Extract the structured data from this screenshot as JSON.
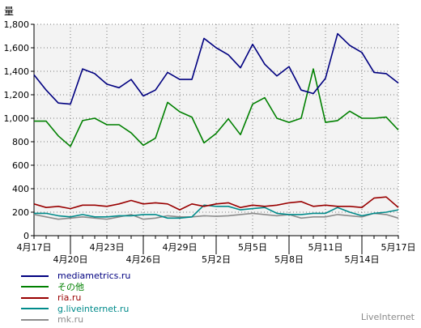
{
  "chart_data": {
    "type": "line",
    "ylabel": "量",
    "ylim": [
      0,
      1800
    ],
    "yticks": [
      "0",
      "200",
      "400",
      "600",
      "800",
      "1,000",
      "1,200",
      "1,400",
      "1,600",
      "1,800"
    ],
    "grid": true,
    "legend_position": "bottom",
    "x": [
      "4月17日",
      "4月18日",
      "4月19日",
      "4月20日",
      "4月21日",
      "4月22日",
      "4月23日",
      "4月24日",
      "4月25日",
      "4月26日",
      "4月27日",
      "4月28日",
      "4月29日",
      "4月30日",
      "5月1日",
      "5月2日",
      "5月3日",
      "5月4日",
      "5月5日",
      "5月6日",
      "5月7日",
      "5月8日",
      "5月9日",
      "5月10日",
      "5月11日",
      "5月12日",
      "5月13日",
      "5月14日",
      "5月15日",
      "5月16日",
      "5月17日"
    ],
    "xtick_labels": [
      {
        "label": "4月17日",
        "index": 0,
        "row": 1
      },
      {
        "label": "4月20日",
        "index": 3,
        "row": 2
      },
      {
        "label": "4月23日",
        "index": 6,
        "row": 1
      },
      {
        "label": "4月26日",
        "index": 9,
        "row": 2
      },
      {
        "label": "4月29日",
        "index": 12,
        "row": 1
      },
      {
        "label": "5月2日",
        "index": 15,
        "row": 2
      },
      {
        "label": "5月5日",
        "index": 18,
        "row": 1
      },
      {
        "label": "5月8日",
        "index": 21,
        "row": 2
      },
      {
        "label": "5月11日",
        "index": 24,
        "row": 1
      },
      {
        "label": "5月14日",
        "index": 27,
        "row": 2
      },
      {
        "label": "5月17日",
        "index": 30,
        "row": 1
      }
    ],
    "series": [
      {
        "name": "mediametrics.ru",
        "color": "#000080",
        "values": [
          1370,
          1240,
          1130,
          1120,
          1420,
          1380,
          1290,
          1260,
          1330,
          1190,
          1240,
          1390,
          1330,
          1330,
          1680,
          1600,
          1540,
          1430,
          1630,
          1460,
          1360,
          1440,
          1240,
          1210,
          1340,
          1720,
          1620,
          1560,
          1390,
          1380,
          1300
        ]
      },
      {
        "name": "その他",
        "color": "#008000",
        "values": [
          975,
          975,
          850,
          760,
          980,
          1000,
          945,
          945,
          875,
          770,
          830,
          1135,
          1055,
          1010,
          790,
          870,
          995,
          860,
          1120,
          1175,
          1000,
          965,
          1000,
          1420,
          965,
          980,
          1060,
          1000,
          1000,
          1010,
          900
        ]
      },
      {
        "name": "ria.ru",
        "color": "#990000",
        "values": [
          270,
          240,
          250,
          230,
          260,
          260,
          250,
          270,
          300,
          270,
          280,
          270,
          220,
          270,
          250,
          270,
          280,
          240,
          260,
          250,
          260,
          280,
          290,
          250,
          260,
          250,
          250,
          240,
          320,
          330,
          240
        ]
      },
      {
        "name": "g.liveinternet.ru",
        "color": "#008b8b",
        "values": [
          190,
          190,
          170,
          160,
          180,
          160,
          160,
          170,
          170,
          180,
          180,
          150,
          150,
          160,
          260,
          250,
          250,
          220,
          230,
          240,
          190,
          180,
          180,
          190,
          190,
          240,
          200,
          170,
          190,
          200,
          220
        ]
      },
      {
        "name": "mk.ru",
        "color": "#8c8c8c",
        "values": [
          180,
          160,
          140,
          150,
          160,
          150,
          140,
          160,
          180,
          140,
          150,
          170,
          160,
          160,
          170,
          165,
          170,
          180,
          190,
          180,
          170,
          180,
          150,
          160,
          160,
          180,
          170,
          160,
          190,
          180,
          150
        ]
      }
    ]
  },
  "watermark": "LiveInternet"
}
